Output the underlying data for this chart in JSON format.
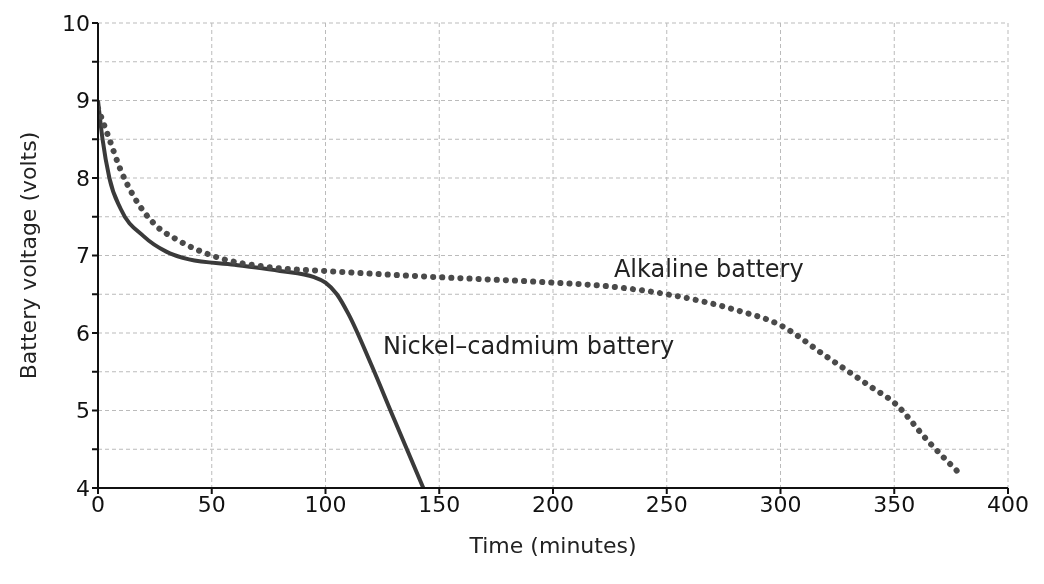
{
  "chart_data": {
    "type": "line",
    "xlabel": "Time (minutes)",
    "ylabel": "Battery voltage (volts)",
    "xlim": [
      0,
      400
    ],
    "xticks": [
      0,
      50,
      100,
      150,
      200,
      250,
      300,
      350,
      400
    ],
    "ylim": [
      4,
      10
    ],
    "yticks": [
      4,
      {
        "value": 4.5,
        "label": null
      },
      5,
      {
        "value": 5.5,
        "label": null
      },
      6,
      {
        "value": 6.5,
        "label": null
      },
      7,
      {
        "value": 7.5,
        "label": null
      },
      8,
      {
        "value": 8.5,
        "label": null
      },
      9,
      {
        "value": 9.5,
        "label": null
      },
      10
    ],
    "grid": true,
    "legend": false,
    "marker": "none",
    "series": [
      {
        "name": "Nickel–cadmium battery",
        "color": "#3a3a3a",
        "line_style": "solid",
        "x": [
          0,
          2,
          5,
          10,
          20,
          30,
          40,
          60,
          80,
          95,
          100,
          105,
          110,
          120,
          130,
          143
        ],
        "values": [
          9.0,
          8.5,
          8.0,
          7.6,
          7.25,
          7.05,
          6.95,
          6.88,
          6.8,
          6.72,
          6.65,
          6.5,
          6.25,
          5.6,
          4.9,
          4.0
        ]
      },
      {
        "name": "Alkaline battery",
        "color": "#4a4a4a",
        "line_style": "dotted",
        "x": [
          0,
          5,
          10,
          15,
          25,
          35,
          50,
          75,
          100,
          150,
          200,
          225,
          250,
          280,
          300,
          320,
          340,
          350,
          365,
          380
        ],
        "values": [
          8.9,
          8.5,
          8.1,
          7.8,
          7.4,
          7.2,
          7.0,
          6.85,
          6.8,
          6.72,
          6.65,
          6.6,
          6.5,
          6.3,
          6.1,
          5.7,
          5.3,
          5.1,
          4.6,
          4.15
        ]
      }
    ]
  }
}
